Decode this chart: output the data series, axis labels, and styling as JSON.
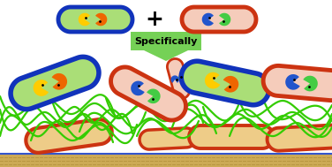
{
  "bg_color": "#ffffff",
  "arrow_color": "#66cc44",
  "arrow_text": "Specifically",
  "arrow_text_color": "#000000",
  "plus_color": "#000000",
  "cell_blue_border": "#1133bb",
  "cell_blue_fill": "#aade77",
  "cell_red_border": "#cc3311",
  "cell_red_fill": "#f5ccbb",
  "cell_yellow_fill": "#eecc88",
  "pie_yellow": "#ffcc00",
  "pie_orange": "#ee6600",
  "pie_blue": "#2255cc",
  "pie_green": "#44cc44",
  "fiber_color": "#33cc00",
  "surface_fill": "#ccaa55",
  "surface_line": "#aa8833",
  "surface_border": "#3355cc"
}
